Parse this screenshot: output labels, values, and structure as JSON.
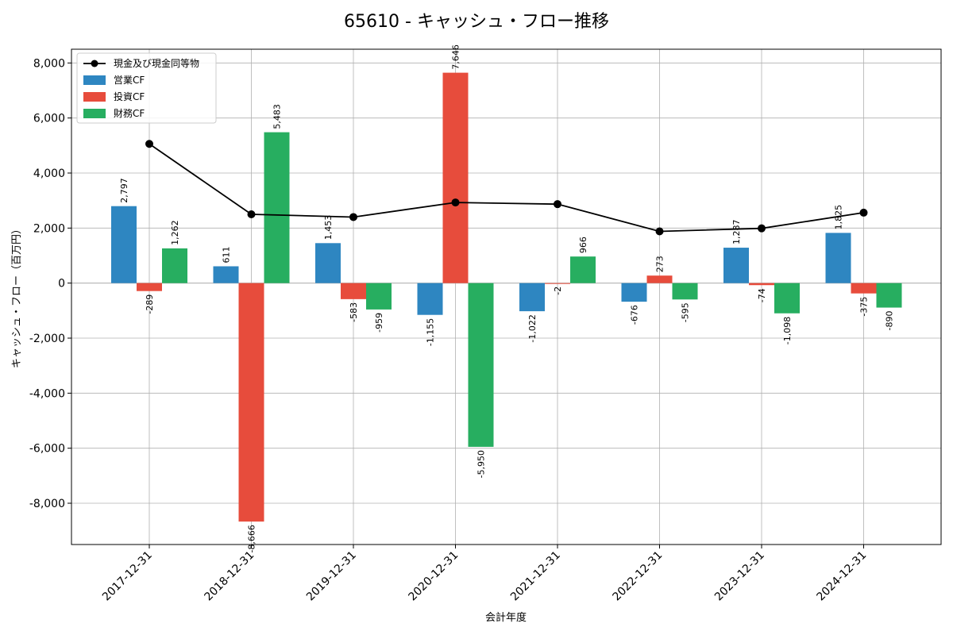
{
  "chart_data": {
    "type": "bar",
    "title": "65610 - キャッシュ・フロー推移",
    "xlabel": "会計年度",
    "ylabel": "キャッシュ・フロー（百万円）",
    "ylim": [
      -9500,
      8500
    ],
    "yticks": [
      -8000,
      -6000,
      -4000,
      -2000,
      0,
      2000,
      4000,
      6000,
      8000
    ],
    "ytick_labels": [
      "-8,000",
      "-6,000",
      "-4,000",
      "-2,000",
      "0",
      "2,000",
      "4,000",
      "6,000",
      "8,000"
    ],
    "grid": true,
    "legend_position": "top-left",
    "categories": [
      "2017-12-31",
      "2018-12-31",
      "2019-12-31",
      "2020-12-31",
      "2021-12-31",
      "2022-12-31",
      "2023-12-31",
      "2024-12-31"
    ],
    "series": [
      {
        "name": "営業CF",
        "kind": "bar",
        "color": "#2e86c1",
        "values": [
          2797,
          611,
          1453,
          -1155,
          -1022,
          -676,
          1287,
          1825
        ],
        "labels": [
          "2,797",
          "611",
          "1,453",
          "-1,155",
          "-1,022",
          "-676",
          "1,287",
          "1,825"
        ]
      },
      {
        "name": "投資CF",
        "kind": "bar",
        "color": "#e74c3c",
        "values": [
          -289,
          -8666,
          -583,
          7646,
          -2,
          273,
          -74,
          -375
        ],
        "labels": [
          "-289",
          "-8,666",
          "-583",
          "7,646",
          "-2",
          "273",
          "-74",
          "-375"
        ]
      },
      {
        "name": "財務CF",
        "kind": "bar",
        "color": "#27ae60",
        "values": [
          1262,
          5483,
          -959,
          -5950,
          966,
          -595,
          -1098,
          -890
        ],
        "labels": [
          "1,262",
          "5,483",
          "-959",
          "-5,950",
          "966",
          "-595",
          "-1,098",
          "-890"
        ]
      },
      {
        "name": "現金及び現金同等物",
        "kind": "line",
        "color": "#000000",
        "values": [
          5060,
          2500,
          2400,
          2930,
          2870,
          1880,
          1990,
          2560
        ]
      }
    ]
  }
}
